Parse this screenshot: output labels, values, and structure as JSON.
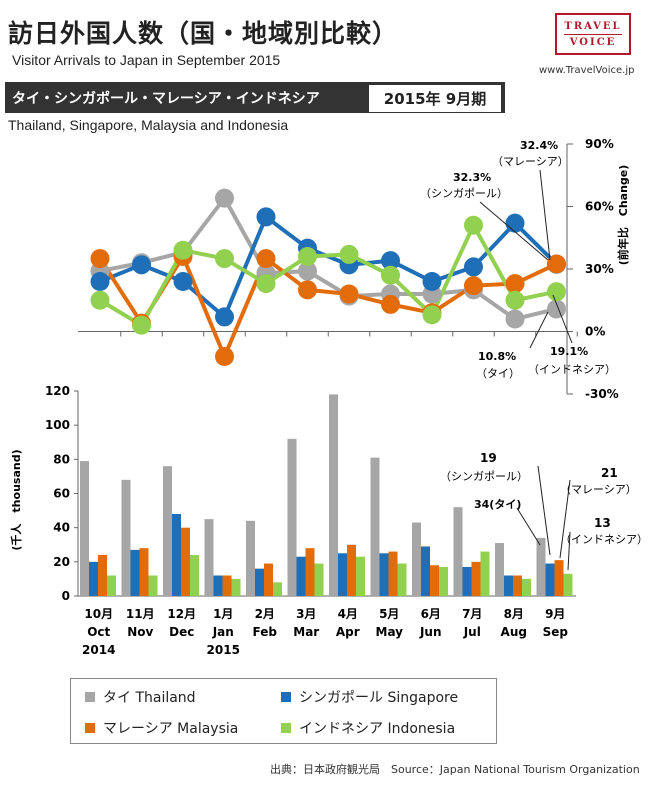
{
  "header": {
    "title_jp": "訪日外国人数（国・地域別比較）",
    "title_en": "Visitor Arrivals to Japan in September 2015",
    "logo_top": "TRAVEL",
    "logo_bottom": "VOICE",
    "url": "www.TravelVoice.jp",
    "countries_jp": "タイ・シンガポール・マレーシア・インドネシア",
    "period": "2015年 9月期",
    "countries_en": "Thailand, Singapore, Malaysia and Indonesia"
  },
  "colors": {
    "thailand": "#a6a6a6",
    "singapore": "#1f6fb8",
    "malaysia": "#e36c0a",
    "indonesia": "#92d050"
  },
  "chart_data": [
    {
      "type": "line",
      "title": "前年比 Change",
      "ylabel": "(前年比　Change)",
      "ylim": [
        -30,
        90
      ],
      "yticks": [
        -30,
        0,
        30,
        60,
        90
      ],
      "ytick_labels": [
        "-30%",
        "0%",
        "30%",
        "60%",
        "90%"
      ],
      "categories": [
        "Oct 2014",
        "Nov",
        "Dec",
        "Jan 2015",
        "Feb",
        "Mar",
        "Apr",
        "May",
        "Jun",
        "Jul",
        "Aug",
        "Sep"
      ],
      "series": [
        {
          "name": "Thailand",
          "values": [
            29,
            33,
            38,
            64,
            28,
            29,
            17,
            18,
            18,
            20,
            6,
            10.8
          ]
        },
        {
          "name": "Singapore",
          "values": [
            24,
            32,
            24,
            7,
            55,
            40,
            32,
            34,
            24,
            31,
            52,
            32.3
          ]
        },
        {
          "name": "Malaysia",
          "values": [
            35,
            4,
            36,
            -12,
            35,
            20,
            18,
            13,
            9,
            22,
            23,
            32.4
          ]
        },
        {
          "name": "Indonesia",
          "values": [
            15,
            3,
            39,
            35,
            23,
            36,
            37,
            27,
            8,
            51,
            15,
            19.1
          ]
        }
      ],
      "annotations": [
        {
          "value": "32.4%",
          "label": "（マレーシア）"
        },
        {
          "value": "32.3%",
          "label": "（シンガポール）"
        },
        {
          "value": "10.8%",
          "label": "（タイ）"
        },
        {
          "value": "19.1%",
          "label": "（インドネシア）"
        }
      ]
    },
    {
      "type": "bar",
      "ylabel": "(千人　thousand)",
      "ylim": [
        0,
        120
      ],
      "yticks": [
        0,
        20,
        40,
        60,
        80,
        100,
        120
      ],
      "month_labels": [
        "10月",
        "11月",
        "12月",
        "1月",
        "2月",
        "3月",
        "4月",
        "5月",
        "6月",
        "7月",
        "8月",
        "9月"
      ],
      "month_en": [
        "Oct",
        "Nov",
        "Dec",
        "Jan",
        "Feb",
        "Mar",
        "Apr",
        "May",
        "Jun",
        "Jul",
        "Aug",
        "Sep"
      ],
      "year_labels": [
        "2014",
        "",
        "",
        "2015",
        "",
        "",
        "",
        "",
        "",
        "",
        "",
        ""
      ],
      "series": [
        {
          "name": "Thailand",
          "values": [
            79,
            68,
            76,
            45,
            44,
            92,
            118,
            81,
            43,
            52,
            31,
            34
          ]
        },
        {
          "name": "Singapore",
          "values": [
            20,
            27,
            48,
            12,
            16,
            23,
            25,
            25,
            29,
            17,
            12,
            19
          ]
        },
        {
          "name": "Malaysia",
          "values": [
            24,
            28,
            40,
            12,
            19,
            28,
            30,
            26,
            18,
            20,
            12,
            21
          ]
        },
        {
          "name": "Indonesia",
          "values": [
            12,
            12,
            24,
            10,
            8,
            19,
            23,
            19,
            17,
            26,
            10,
            13
          ]
        }
      ],
      "annotations": [
        {
          "value": "19",
          "label": "（シンガポール）"
        },
        {
          "value": "34(タイ)",
          "label": ""
        },
        {
          "value": "21",
          "label": "（マレーシア）"
        },
        {
          "value": "13",
          "label": "（インドネシア）"
        }
      ]
    }
  ],
  "legend": {
    "thailand": "タイ Thailand",
    "singapore": "シンガポール Singapore",
    "malaysia": "マレーシア  Malaysia",
    "indonesia": "インドネシア Indonesia"
  },
  "source": "出典：日本政府観光局　Source：Japan  National Tourism  Organization"
}
